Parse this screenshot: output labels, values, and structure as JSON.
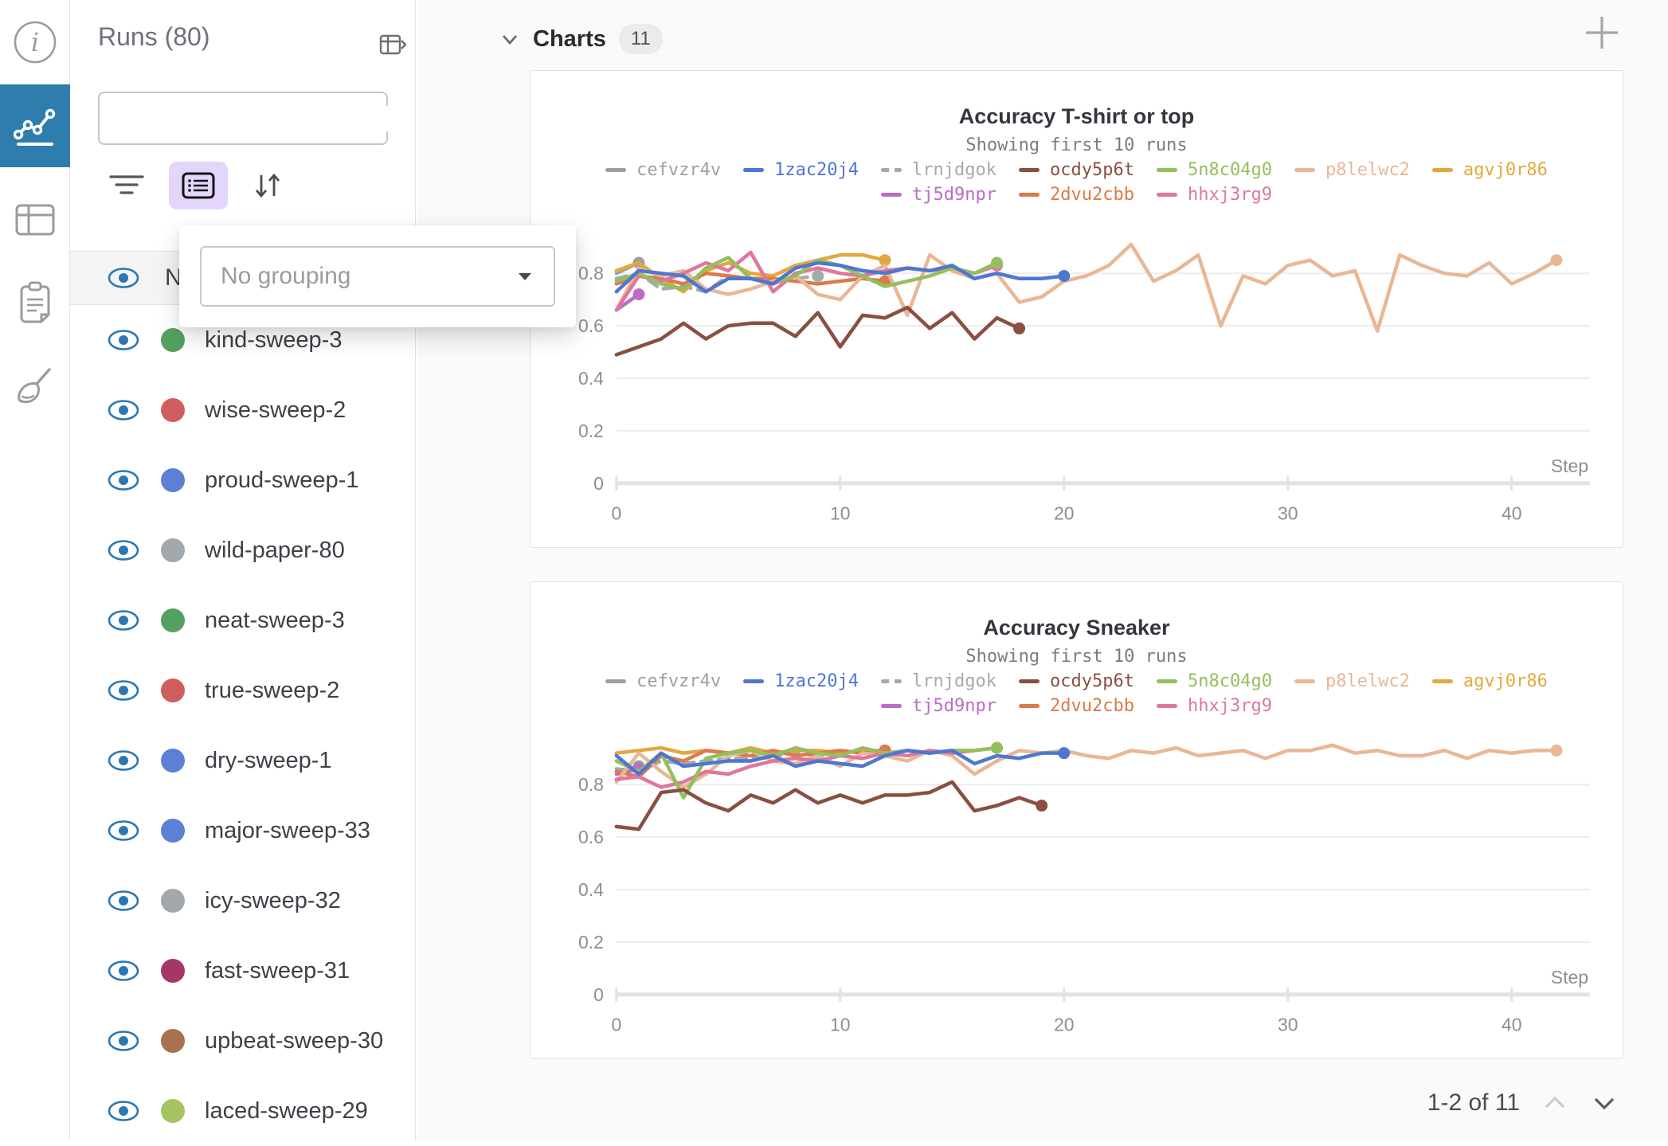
{
  "icon_rail": {
    "items": [
      {
        "name": "info",
        "active": false
      },
      {
        "name": "charts",
        "active": true
      },
      {
        "name": "run-table",
        "active": false
      },
      {
        "name": "notes",
        "active": false
      },
      {
        "name": "sweeps",
        "active": false
      }
    ],
    "active_color": "#2e7dac"
  },
  "sidebar": {
    "title": "Runs (80)",
    "search": {
      "value": "",
      "placeholder": ""
    },
    "grouping_popup": {
      "value": "No grouping"
    },
    "list_header": "Name",
    "eye_color": "#2b77b4",
    "runs": [
      {
        "name": "kind-sweep-3",
        "color": "#55a061"
      },
      {
        "name": "wise-sweep-2",
        "color": "#d15e5e"
      },
      {
        "name": "proud-sweep-1",
        "color": "#5c80d6"
      },
      {
        "name": "wild-paper-80",
        "color": "#a3a8ad"
      },
      {
        "name": "neat-sweep-3",
        "color": "#55a061"
      },
      {
        "name": "true-sweep-2",
        "color": "#d15e5e"
      },
      {
        "name": "dry-sweep-1",
        "color": "#5c80d6"
      },
      {
        "name": "major-sweep-33",
        "color": "#5c80d6"
      },
      {
        "name": "icy-sweep-32",
        "color": "#a3a8ad"
      },
      {
        "name": "fast-sweep-31",
        "color": "#a43767"
      },
      {
        "name": "upbeat-sweep-30",
        "color": "#a8714f"
      },
      {
        "name": "laced-sweep-29",
        "color": "#a6c361"
      }
    ]
  },
  "charts_panel": {
    "header": {
      "title": "Charts",
      "count": "11"
    },
    "pagination": {
      "label": "1-2 of 11"
    }
  },
  "chart_data": [
    {
      "type": "line",
      "title": "Accuracy T-shirt or top",
      "subtitle": "Showing first 10 runs",
      "xlabel": "Step",
      "xticks": [
        0,
        10,
        20,
        30,
        40
      ],
      "yticks": [
        0,
        0.2,
        0.4,
        0.6,
        0.8
      ],
      "xlim": [
        0,
        43.5
      ],
      "ylim": [
        0,
        0.97
      ],
      "legend_rows": [
        [
          0,
          1,
          2,
          3,
          4,
          5,
          6
        ],
        [
          7,
          8,
          9
        ]
      ],
      "series": [
        {
          "name": "cefvzr4v",
          "color": "#9b9fa4",
          "values": [
            0.8,
            0.84
          ]
        },
        {
          "name": "1zac20j4",
          "color": "#4f76d2",
          "values": [
            0.73,
            0.81,
            0.8,
            0.79,
            0.73,
            0.78,
            0.78,
            0.76,
            0.82,
            0.84,
            0.83,
            0.81,
            0.8,
            0.82,
            0.81,
            0.83,
            0.78,
            0.8,
            0.78,
            0.78,
            0.79
          ]
        },
        {
          "name": "lrnjdgok",
          "color": "#a5a9ad",
          "dash": true,
          "values": [
            0.78,
            0.8,
            0.74,
            0.75,
            0.73,
            0.79,
            0.78,
            0.77,
            0.78,
            0.79
          ]
        },
        {
          "name": "ocdy5p6t",
          "color": "#8a4f41",
          "values": [
            0.49,
            0.52,
            0.55,
            0.61,
            0.55,
            0.6,
            0.61,
            0.61,
            0.56,
            0.65,
            0.52,
            0.64,
            0.63,
            0.67,
            0.59,
            0.65,
            0.55,
            0.63,
            0.59
          ]
        },
        {
          "name": "5n8c04g0",
          "color": "#93c05c",
          "values": [
            0.77,
            0.8,
            0.76,
            0.74,
            0.82,
            0.86,
            0.78,
            0.76,
            0.79,
            0.85,
            0.83,
            0.79,
            0.75,
            0.77,
            0.79,
            0.82,
            0.8,
            0.84
          ]
        },
        {
          "name": "p8lelwc2",
          "color": "#e9b795",
          "values": [
            0.66,
            0.82,
            0.79,
            0.81,
            0.74,
            0.72,
            0.74,
            0.77,
            0.79,
            0.72,
            0.7,
            0.79,
            0.83,
            0.64,
            0.87,
            0.81,
            0.78,
            0.8,
            0.69,
            0.71,
            0.77,
            0.79,
            0.83,
            0.91,
            0.77,
            0.81,
            0.87,
            0.6,
            0.79,
            0.76,
            0.83,
            0.85,
            0.79,
            0.81,
            0.58,
            0.87,
            0.83,
            0.8,
            0.79,
            0.84,
            0.76,
            0.8,
            0.85
          ]
        },
        {
          "name": "agvj0r86",
          "color": "#e3a83d",
          "values": [
            0.81,
            0.84,
            0.78,
            0.73,
            0.81,
            0.84,
            0.8,
            0.79,
            0.83,
            0.85,
            0.87,
            0.87,
            0.85
          ]
        },
        {
          "name": "tj5d9npr",
          "color": "#bd6bc8",
          "values": [
            0.66,
            0.72
          ]
        },
        {
          "name": "2dvu2cbb",
          "color": "#dc7a49",
          "values": [
            0.76,
            0.79,
            0.78,
            0.76,
            0.8,
            0.79,
            0.78,
            0.78,
            0.77,
            0.76,
            0.77,
            0.78,
            0.77
          ]
        },
        {
          "name": "hhxj3rg9",
          "color": "#e0769e",
          "values": [
            0.66,
            0.79,
            0.77,
            0.8,
            0.84,
            0.81,
            0.88,
            0.73,
            0.8,
            0.82,
            0.8,
            0.79,
            0.81,
            0.82,
            0.81,
            0.82,
            0.8,
            0.83
          ]
        }
      ]
    },
    {
      "type": "line",
      "title": "Accuracy Sneaker",
      "subtitle": "Showing first 10 runs",
      "xlabel": "Step",
      "xticks": [
        0,
        10,
        20,
        30,
        40
      ],
      "yticks": [
        0,
        0.2,
        0.4,
        0.6,
        0.8
      ],
      "xlim": [
        0,
        43.5
      ],
      "ylim": [
        0,
        0.97
      ],
      "legend_rows": [
        [
          0,
          1,
          2,
          3,
          4,
          5,
          6
        ],
        [
          7,
          8,
          9
        ]
      ],
      "series": [
        {
          "name": "cefvzr4v",
          "color": "#9b9fa4",
          "values": [
            0.85,
            0.87
          ]
        },
        {
          "name": "1zac20j4",
          "color": "#4f76d2",
          "values": [
            0.91,
            0.84,
            0.92,
            0.87,
            0.88,
            0.89,
            0.89,
            0.91,
            0.87,
            0.89,
            0.88,
            0.87,
            0.91,
            0.93,
            0.92,
            0.93,
            0.88,
            0.91,
            0.9,
            0.92,
            0.92
          ]
        },
        {
          "name": "lrnjdgok",
          "color": "#a5a9ad",
          "dash": true,
          "values": [
            0.86,
            0.85,
            0.89,
            0.88,
            0.89,
            0.9,
            0.9,
            0.91,
            0.92,
            0.91
          ]
        },
        {
          "name": "ocdy5p6t",
          "color": "#8a4f41",
          "values": [
            0.64,
            0.63,
            0.77,
            0.78,
            0.73,
            0.7,
            0.76,
            0.73,
            0.78,
            0.73,
            0.76,
            0.73,
            0.76,
            0.76,
            0.77,
            0.81,
            0.7,
            0.72,
            0.75,
            0.72
          ]
        },
        {
          "name": "5n8c04g0",
          "color": "#93c05c",
          "values": [
            0.89,
            0.85,
            0.92,
            0.75,
            0.9,
            0.92,
            0.93,
            0.91,
            0.94,
            0.92,
            0.91,
            0.94,
            0.92,
            0.93,
            0.92,
            0.93,
            0.93,
            0.94
          ]
        },
        {
          "name": "p8lelwc2",
          "color": "#e9b795",
          "values": [
            0.81,
            0.92,
            0.85,
            0.79,
            0.84,
            0.91,
            0.93,
            0.89,
            0.88,
            0.91,
            0.87,
            0.92,
            0.91,
            0.89,
            0.93,
            0.91,
            0.84,
            0.89,
            0.93,
            0.92,
            0.93,
            0.91,
            0.9,
            0.93,
            0.92,
            0.94,
            0.91,
            0.92,
            0.93,
            0.9,
            0.93,
            0.93,
            0.95,
            0.92,
            0.93,
            0.91,
            0.91,
            0.93,
            0.9,
            0.93,
            0.92,
            0.93,
            0.93
          ]
        },
        {
          "name": "agvj0r86",
          "color": "#e3a83d",
          "values": [
            0.92,
            0.93,
            0.94,
            0.92,
            0.93,
            0.92,
            0.94,
            0.92,
            0.93,
            0.93,
            0.92,
            0.93,
            0.93
          ]
        },
        {
          "name": "tj5d9npr",
          "color": "#bd6bc8",
          "values": [
            0.84,
            0.86
          ]
        },
        {
          "name": "2dvu2cbb",
          "color": "#dc7a49",
          "values": [
            0.85,
            0.83,
            0.91,
            0.89,
            0.93,
            0.92,
            0.91,
            0.93,
            0.91,
            0.92,
            0.93,
            0.92,
            0.93
          ]
        },
        {
          "name": "hhxj3rg9",
          "color": "#e0769e",
          "values": [
            0.82,
            0.83,
            0.79,
            0.81,
            0.85,
            0.84,
            0.87,
            0.89,
            0.9,
            0.89,
            0.91,
            0.9,
            0.92,
            0.91,
            0.93,
            0.92,
            0.93,
            0.94
          ]
        }
      ]
    }
  ]
}
